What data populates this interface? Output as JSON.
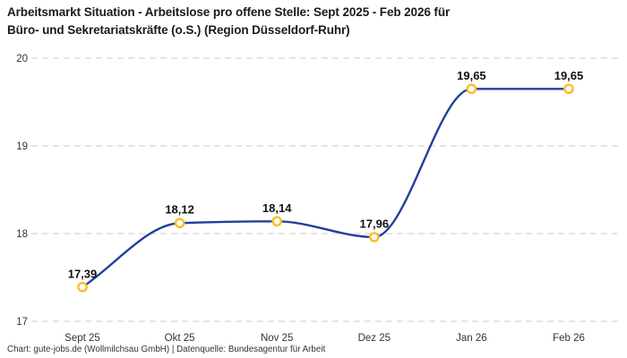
{
  "title": {
    "line1": "Arbeitsmarkt Situation - Arbeitslose pro offene Stelle: Sept 2025 - Feb 2026 für",
    "line2": "Büro- und Sekretariatskräfte (o.S.) (Region Düsseldorf-Ruhr)"
  },
  "footer": "Chart: gute-jobs.de (Wollmilchsau GmbH) | Datenquelle: Bundesagentur für Arbeit",
  "chart_data": {
    "type": "line",
    "title": "Arbeitsmarkt Situation - Arbeitslose pro offene Stelle: Sept 2025 - Feb 2026 für Büro- und Sekretariatskräfte (o.S.) (Region Düsseldorf-Ruhr)",
    "categories": [
      "Sept 25",
      "Okt 25",
      "Nov 25",
      "Dez 25",
      "Jan 26",
      "Feb 26"
    ],
    "values": [
      17.39,
      18.12,
      18.14,
      17.96,
      19.65,
      19.65
    ],
    "value_labels": [
      "17,39",
      "18,12",
      "18,14",
      "17,96",
      "19,65",
      "19,65"
    ],
    "xlabel": "",
    "ylabel": "",
    "ylim": [
      17,
      20
    ],
    "yticks": [
      17,
      18,
      19,
      20
    ],
    "ytick_labels": [
      "17",
      "18",
      "19",
      "20"
    ],
    "grid": "horizontal-dashed",
    "legend": "none",
    "curve": "monotone",
    "colors": {
      "line": "#21409a",
      "marker_ring": "#fbbe2e",
      "marker_fill": "#ffffff",
      "gridline": "#cbcbcb",
      "axis_text": "#333333",
      "label_text": "#111111",
      "title_text": "#1a1a1a",
      "background": "#ffffff"
    }
  }
}
